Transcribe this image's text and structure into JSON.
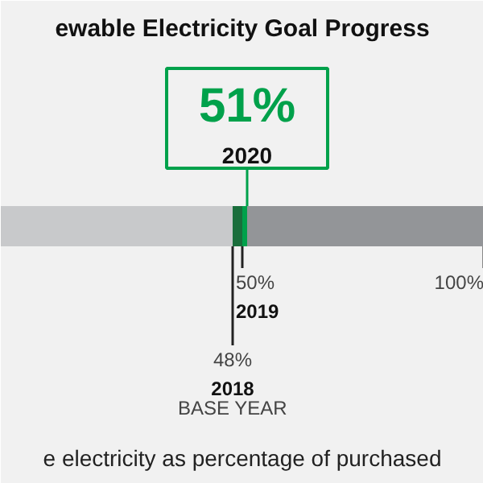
{
  "chart_data": {
    "type": "bar",
    "orientation": "horizontal",
    "stacked": true,
    "title": "ewable Electricity Goal Progress",
    "categories": [
      null
    ],
    "series": [
      {
        "color": "#c8c9cb",
        "values": [
          48
        ]
      },
      {
        "color": "#1a6e3c",
        "values": [
          2
        ]
      },
      {
        "color": "#00a14b",
        "values": [
          1
        ]
      },
      {
        "color": "#939598",
        "values": [
          49
        ]
      }
    ],
    "xlim": [
      0,
      100
    ],
    "tick_labels": false,
    "ref_lines": [
      {
        "axis": "x",
        "value": 48,
        "label": "48%\n2018\nBASE YEAR"
      },
      {
        "axis": "x",
        "value": 50,
        "label": "50%\n2019"
      },
      {
        "axis": "x",
        "value": 51,
        "label": "51%\n2020",
        "color": "#00a14b"
      },
      {
        "axis": "x",
        "value": 100,
        "label": "100%"
      }
    ],
    "annotations": [
      "e electricity as percentage of purchased"
    ]
  }
}
